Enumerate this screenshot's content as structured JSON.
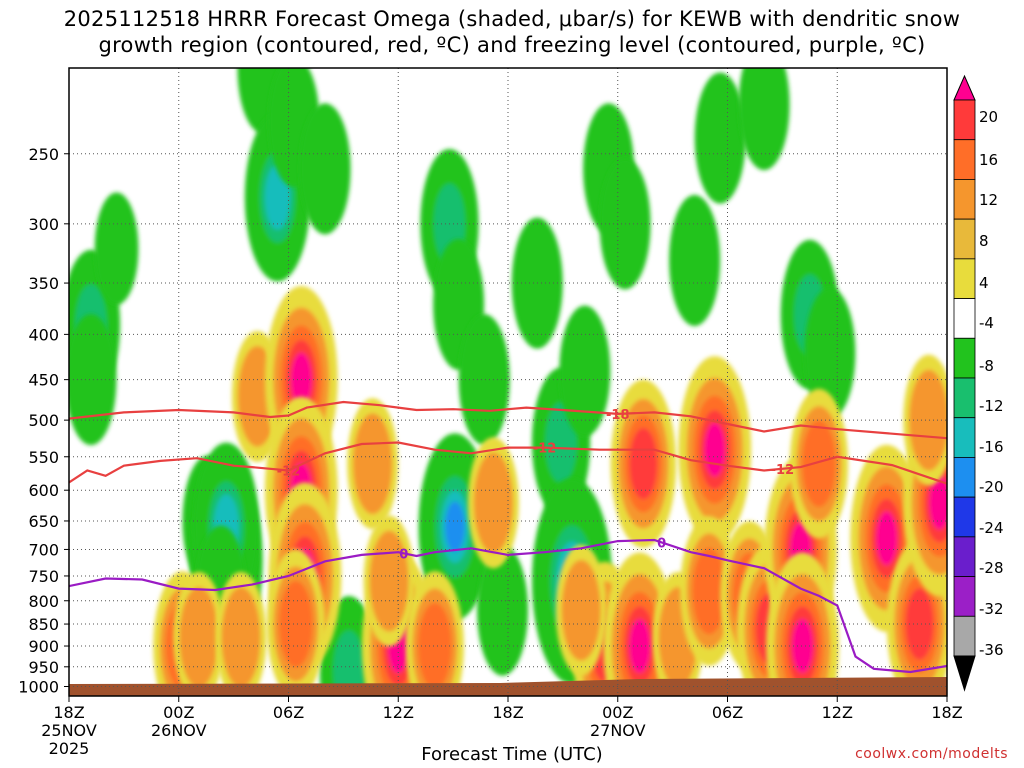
{
  "title": {
    "line1": "2025112518 HRRR Forecast Omega (shaded, μbar/s) for KEWB with dendritic snow",
    "line2": "growth region (contoured, red, ºC) and freezing level (contoured, purple, ºC)"
  },
  "credit": "coolwx.com/modelts",
  "chart_data": {
    "type": "heatmap",
    "title": "2025112518 HRRR Forecast Omega (shaded, μbar/s) for KEWB with dendritic snow growth region (contoured, red, ºC) and freezing level (contoured, purple, ºC)",
    "xlabel": "Forecast Time (UTC)",
    "ylabel": "",
    "y_scale": "log-pressure (inverted)",
    "ylim": [
      1025,
      200
    ],
    "xlim_hours": [
      0,
      48
    ],
    "x_ticks": [
      {
        "label": "18Z",
        "date": "25NOV",
        "year": "2025"
      },
      {
        "label": "00Z",
        "date": "26NOV",
        "year": ""
      },
      {
        "label": "06Z",
        "date": "",
        "year": ""
      },
      {
        "label": "12Z",
        "date": "",
        "year": ""
      },
      {
        "label": "18Z",
        "date": "",
        "year": ""
      },
      {
        "label": "00Z",
        "date": "27NOV",
        "year": ""
      },
      {
        "label": "06Z",
        "date": "",
        "year": ""
      },
      {
        "label": "12Z",
        "date": "",
        "year": ""
      },
      {
        "label": "18Z",
        "date": "",
        "year": ""
      }
    ],
    "y_ticks": [
      250,
      300,
      350,
      400,
      450,
      500,
      550,
      600,
      650,
      700,
      750,
      800,
      850,
      900,
      950,
      1000
    ],
    "grid": true,
    "colorbar": {
      "labels": [
        "20",
        "16",
        "12",
        "8",
        "4",
        "-4",
        "-8",
        "-12",
        "-16",
        "-20",
        "-24",
        "-28",
        "-32",
        "-36"
      ],
      "colors": [
        "#ff0090",
        "#ff3a3a",
        "#ff6e28",
        "#f5962d",
        "#e8b93a",
        "#e8dc3c",
        "#ffffff",
        "#22c31e",
        "#19bf6e",
        "#18bdbc",
        "#1d8ff0",
        "#1f38e8",
        "#6a1ecc",
        "#9b1fc7",
        "#a8a8a8",
        "#000000"
      ]
    },
    "omega_cells": [
      {
        "t": 1.2,
        "p": 390,
        "v": -12
      },
      {
        "t": 1.2,
        "p": 450,
        "v": -8
      },
      {
        "t": 2.6,
        "p": 320,
        "v": -4
      },
      {
        "t": 7.6,
        "p": 650,
        "v": -8
      },
      {
        "t": 8.6,
        "p": 720,
        "v": -20
      },
      {
        "t": 8.6,
        "p": 660,
        "v": -16
      },
      {
        "t": 8.3,
        "p": 780,
        "v": -8
      },
      {
        "t": 10.6,
        "p": 200,
        "v": -8
      },
      {
        "t": 11.4,
        "p": 280,
        "v": -16
      },
      {
        "t": 12.3,
        "p": 230,
        "v": -8
      },
      {
        "t": 14.0,
        "p": 260,
        "v": -8
      },
      {
        "t": 15.3,
        "p": 960,
        "v": -12
      },
      {
        "t": 20.8,
        "p": 300,
        "v": -12
      },
      {
        "t": 21.3,
        "p": 370,
        "v": -8
      },
      {
        "t": 21.1,
        "p": 660,
        "v": -20
      },
      {
        "t": 22.7,
        "p": 450,
        "v": -8
      },
      {
        "t": 23.7,
        "p": 820,
        "v": -8
      },
      {
        "t": 25.6,
        "p": 350,
        "v": -8
      },
      {
        "t": 26.9,
        "p": 530,
        "v": -12
      },
      {
        "t": 27.5,
        "p": 760,
        "v": -24
      },
      {
        "t": 28.2,
        "p": 440,
        "v": -8
      },
      {
        "t": 29.5,
        "p": 260,
        "v": -8
      },
      {
        "t": 30.4,
        "p": 300,
        "v": -8
      },
      {
        "t": 34.2,
        "p": 330,
        "v": -8
      },
      {
        "t": 35.6,
        "p": 240,
        "v": -8
      },
      {
        "t": 38.0,
        "p": 220,
        "v": -8
      },
      {
        "t": 40.5,
        "p": 380,
        "v": -12
      },
      {
        "t": 41.6,
        "p": 420,
        "v": -8
      },
      {
        "t": 6.2,
        "p": 900,
        "v": 12
      },
      {
        "t": 7.1,
        "p": 880,
        "v": 8
      },
      {
        "t": 9.4,
        "p": 880,
        "v": 8
      },
      {
        "t": 10.3,
        "p": 470,
        "v": 8
      },
      {
        "t": 12.7,
        "p": 450,
        "v": 20
      },
      {
        "t": 12.7,
        "p": 600,
        "v": 20
      },
      {
        "t": 12.9,
        "p": 750,
        "v": 20
      },
      {
        "t": 12.4,
        "p": 850,
        "v": 12
      },
      {
        "t": 18.0,
        "p": 900,
        "v": 20
      },
      {
        "t": 17.5,
        "p": 760,
        "v": 8
      },
      {
        "t": 16.6,
        "p": 560,
        "v": 8
      },
      {
        "t": 20.0,
        "p": 900,
        "v": 12
      },
      {
        "t": 23.2,
        "p": 620,
        "v": 8
      },
      {
        "t": 29.3,
        "p": 900,
        "v": 16
      },
      {
        "t": 28.0,
        "p": 820,
        "v": 8
      },
      {
        "t": 31.2,
        "p": 900,
        "v": 20
      },
      {
        "t": 31.4,
        "p": 560,
        "v": 16
      },
      {
        "t": 33.3,
        "p": 880,
        "v": 8
      },
      {
        "t": 35.3,
        "p": 540,
        "v": 20
      },
      {
        "t": 35.0,
        "p": 780,
        "v": 12
      },
      {
        "t": 37.2,
        "p": 790,
        "v": 12
      },
      {
        "t": 38.3,
        "p": 860,
        "v": 16
      },
      {
        "t": 40.0,
        "p": 700,
        "v": 20
      },
      {
        "t": 40.1,
        "p": 900,
        "v": 20
      },
      {
        "t": 41.0,
        "p": 560,
        "v": 12
      },
      {
        "t": 44.7,
        "p": 680,
        "v": 20
      },
      {
        "t": 46.5,
        "p": 850,
        "v": 16
      },
      {
        "t": 47.6,
        "p": 620,
        "v": 20
      },
      {
        "t": 47.0,
        "p": 500,
        "v": 8
      }
    ],
    "contours": [
      {
        "level": "-18",
        "color": "#e84040",
        "label_at": 30.0,
        "points": [
          [
            0,
            498
          ],
          [
            3,
            490
          ],
          [
            6,
            487
          ],
          [
            9,
            490
          ],
          [
            11,
            496
          ],
          [
            12,
            494
          ],
          [
            13,
            484
          ],
          [
            15,
            477
          ],
          [
            17,
            481
          ],
          [
            19,
            487
          ],
          [
            21,
            486
          ],
          [
            23,
            488
          ],
          [
            25,
            484
          ],
          [
            27,
            487
          ],
          [
            30,
            492
          ],
          [
            32,
            490
          ],
          [
            34,
            495
          ],
          [
            36,
            505
          ],
          [
            38,
            515
          ],
          [
            40,
            507
          ],
          [
            42,
            512
          ],
          [
            45,
            518
          ],
          [
            48,
            524
          ]
        ]
      },
      {
        "level": "-12",
        "color": "#e84040",
        "label_at": 26.0,
        "points": [
          [
            0,
            588
          ],
          [
            1,
            570
          ],
          [
            2,
            578
          ],
          [
            3,
            563
          ],
          [
            5,
            556
          ],
          [
            7,
            552
          ],
          [
            9,
            563
          ],
          [
            10,
            565
          ],
          [
            12,
            570
          ],
          [
            14,
            545
          ],
          [
            16,
            532
          ],
          [
            18,
            530
          ],
          [
            20,
            540
          ],
          [
            22,
            545
          ],
          [
            24,
            537
          ],
          [
            26,
            537
          ],
          [
            29,
            540
          ],
          [
            32,
            540
          ],
          [
            34,
            555
          ],
          [
            36,
            563
          ],
          [
            38,
            570
          ],
          [
            40,
            565
          ],
          [
            42,
            550
          ],
          [
            45,
            562
          ],
          [
            48,
            590
          ]
        ],
        "label_positions": [
          12.0,
          26.0,
          39.0
        ]
      },
      {
        "level": "0",
        "color": "#9a1bc4",
        "label_at": 18.0,
        "points": [
          [
            0,
            770
          ],
          [
            2,
            755
          ],
          [
            4,
            757
          ],
          [
            6,
            775
          ],
          [
            8,
            778
          ],
          [
            10,
            767
          ],
          [
            12,
            750
          ],
          [
            14,
            722
          ],
          [
            16,
            710
          ],
          [
            18,
            705
          ],
          [
            19,
            712
          ],
          [
            20,
            705
          ],
          [
            22,
            698
          ],
          [
            24,
            710
          ],
          [
            26,
            705
          ],
          [
            28,
            698
          ],
          [
            30,
            685
          ],
          [
            32,
            683
          ],
          [
            34,
            705
          ],
          [
            35,
            712
          ],
          [
            36,
            720
          ],
          [
            38,
            735
          ],
          [
            40,
            775
          ],
          [
            41,
            790
          ],
          [
            42,
            810
          ],
          [
            43,
            925
          ],
          [
            44,
            955
          ],
          [
            46,
            963
          ],
          [
            48,
            948
          ],
          [
            49,
            947
          ]
        ],
        "label_positions": [
          18.3,
          32.4
        ]
      }
    ]
  }
}
